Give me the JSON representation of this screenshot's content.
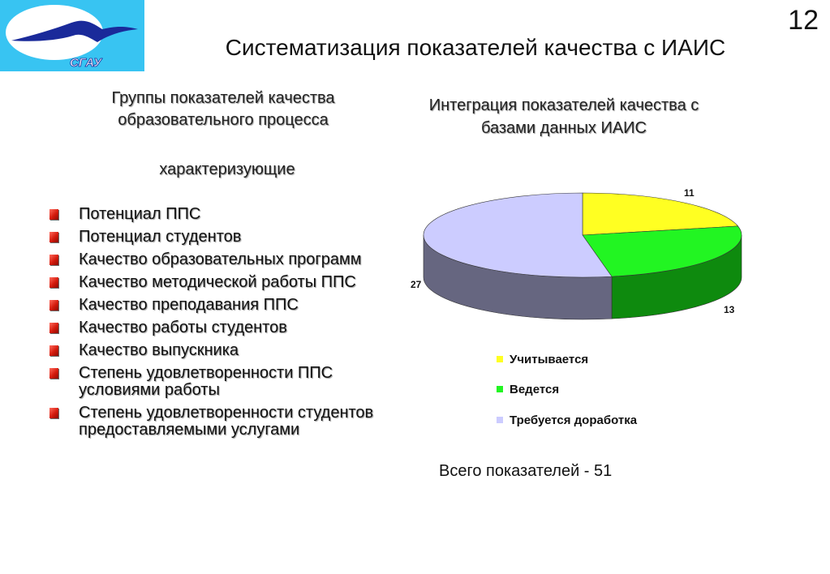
{
  "slide": {
    "number": "12",
    "title": "Систематизация показателей качества с ИАИС",
    "logo_text": "СГАУ"
  },
  "left": {
    "heading_line1": "Группы показателей качества",
    "heading_line2": "образовательного процесса",
    "subheading": "характеризующие",
    "items": [
      "Потенциал ППС",
      "Потенциал студентов",
      "Качество образовательных программ",
      "Качество методической работы ППС",
      "Качество преподавания ППС",
      "Качество работы студентов",
      "Качество выпускника",
      "Степень удовлетворенности ППС условиями работы",
      "Степень удовлетворенности студентов предоставляемыми услугами"
    ]
  },
  "right": {
    "heading_line1": "Интеграция показателей качества с",
    "heading_line2": "базами данных ИАИС",
    "total": "Всего показателей - 51"
  },
  "colors": {
    "bullet": "#d41a0c",
    "logo_bg": "#38c4f2",
    "slice_yellow": "#ffff22",
    "slice_green": "#22f522",
    "slice_lavender": "#ccccff"
  },
  "chart_data": {
    "type": "pie",
    "style": "3d",
    "title": "",
    "categories": [
      "Учитывается",
      "Ведется",
      "Требуется доработка"
    ],
    "values": [
      11,
      13,
      27
    ],
    "colors": [
      "#ffff22",
      "#22f522",
      "#ccccff"
    ],
    "side_colors": [
      "#b8b818",
      "#0e8a0e",
      "#666680"
    ],
    "data_labels": [
      "11",
      "13",
      "27"
    ],
    "legend_position": "bottom"
  }
}
